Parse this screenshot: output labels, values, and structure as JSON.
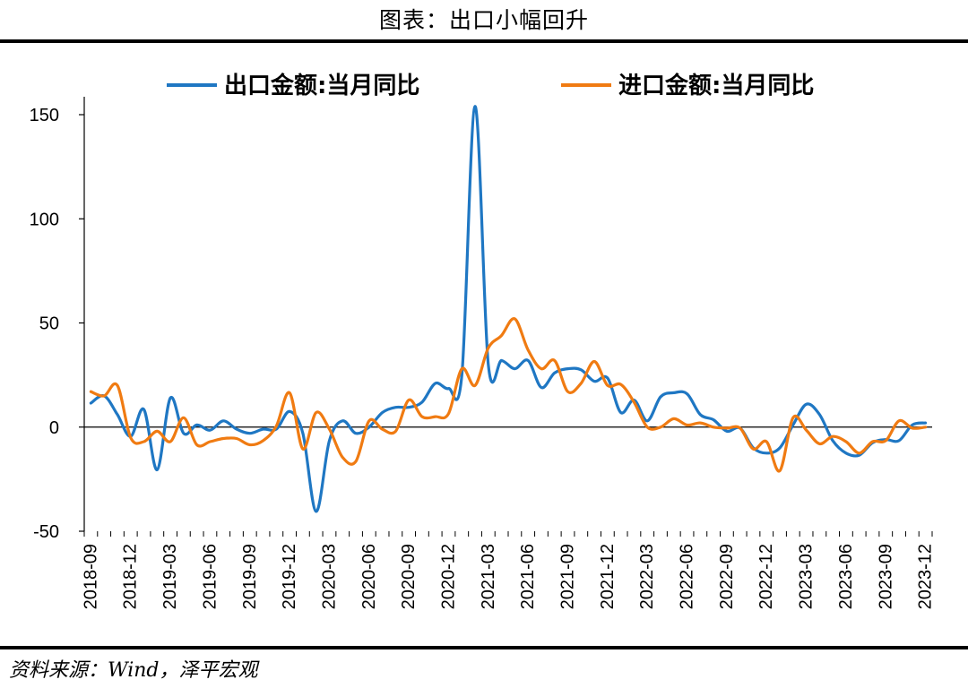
{
  "header": {
    "title": "图表：出口小幅回升"
  },
  "footer": {
    "source": "资料来源：Wind，泽平宏观"
  },
  "chart_data": {
    "type": "line",
    "title": "图表：出口小幅回升",
    "xlabel": "",
    "ylabel": "",
    "ylim": [
      -50,
      150
    ],
    "yticks": [
      -50,
      0,
      50,
      100,
      150
    ],
    "tick_labels": [
      "2018-09",
      "2018-12",
      "2019-03",
      "2019-06",
      "2019-09",
      "2019-12",
      "2020-03",
      "2020-06",
      "2020-09",
      "2020-12",
      "2021-03",
      "2021-06",
      "2021-09",
      "2021-12",
      "2022-03",
      "2022-06",
      "2022-09",
      "2022-12",
      "2023-03",
      "2023-06",
      "2023-09",
      "2023-12"
    ],
    "categories": [
      "2018-09",
      "2018-10",
      "2018-11",
      "2018-12",
      "2019-01",
      "2019-02",
      "2019-03",
      "2019-04",
      "2019-05",
      "2019-06",
      "2019-07",
      "2019-08",
      "2019-09",
      "2019-10",
      "2019-11",
      "2019-12",
      "2020-01",
      "2020-02",
      "2020-03",
      "2020-04",
      "2020-05",
      "2020-06",
      "2020-07",
      "2020-08",
      "2020-09",
      "2020-10",
      "2020-11",
      "2020-12",
      "2021-01",
      "2021-02",
      "2021-03",
      "2021-04",
      "2021-05",
      "2021-06",
      "2021-07",
      "2021-08",
      "2021-09",
      "2021-10",
      "2021-11",
      "2021-12",
      "2022-01",
      "2022-02",
      "2022-03",
      "2022-04",
      "2022-05",
      "2022-06",
      "2022-07",
      "2022-08",
      "2022-09",
      "2022-10",
      "2022-11",
      "2022-12",
      "2023-01",
      "2023-02",
      "2023-03",
      "2023-04",
      "2023-05",
      "2023-06",
      "2023-07",
      "2023-08",
      "2023-09",
      "2023-10",
      "2023-11",
      "2023-12"
    ],
    "series": [
      {
        "name": "出口金额:当月同比",
        "color": "#1f77c3",
        "values": [
          11.5,
          15.0,
          6.0,
          -4.5,
          8.5,
          -20.5,
          14.0,
          -3.0,
          1.0,
          -1.5,
          3.0,
          -1.0,
          -3.0,
          -1.0,
          -1.0,
          7.5,
          -3.0,
          -40.5,
          -6.5,
          3.0,
          -3.0,
          0.0,
          7.0,
          9.5,
          9.5,
          12.0,
          21.0,
          18.5,
          25.0,
          154.0,
          30.0,
          32.0,
          28.0,
          32.0,
          19.0,
          26.0,
          28.0,
          27.5,
          22.0,
          23.5,
          7.0,
          13.0,
          3.0,
          14.5,
          16.5,
          16.0,
          6.0,
          3.5,
          -2.0,
          -0.5,
          -10.0,
          -12.5,
          -10.0,
          1.0,
          11.0,
          6.0,
          -6.5,
          -12.5,
          -13.5,
          -7.5,
          -6.0,
          -6.5,
          1.0,
          2.0
        ]
      },
      {
        "name": "进口金额:当月同比",
        "color": "#f07b12",
        "values": [
          17.0,
          15.0,
          20.0,
          -5.0,
          -7.0,
          -2.0,
          -7.0,
          4.5,
          -8.5,
          -7.0,
          -5.5,
          -5.5,
          -8.5,
          -6.5,
          0.5,
          16.5,
          -10.5,
          7.0,
          -1.0,
          -14.5,
          -16.5,
          3.0,
          -1.0,
          -2.0,
          13.0,
          5.0,
          5.0,
          6.5,
          28.0,
          20.0,
          38.0,
          44.0,
          52.0,
          37.0,
          28.0,
          32.0,
          17.0,
          21.0,
          31.5,
          20.0,
          20.5,
          12.0,
          0.0,
          0.0,
          4.0,
          1.0,
          2.0,
          0.0,
          -0.5,
          -0.5,
          -10.5,
          -7.0,
          -21.0,
          4.5,
          -1.5,
          -8.0,
          -4.5,
          -7.0,
          -12.5,
          -7.0,
          -6.5,
          3.0,
          -0.5,
          0.0
        ]
      }
    ]
  }
}
